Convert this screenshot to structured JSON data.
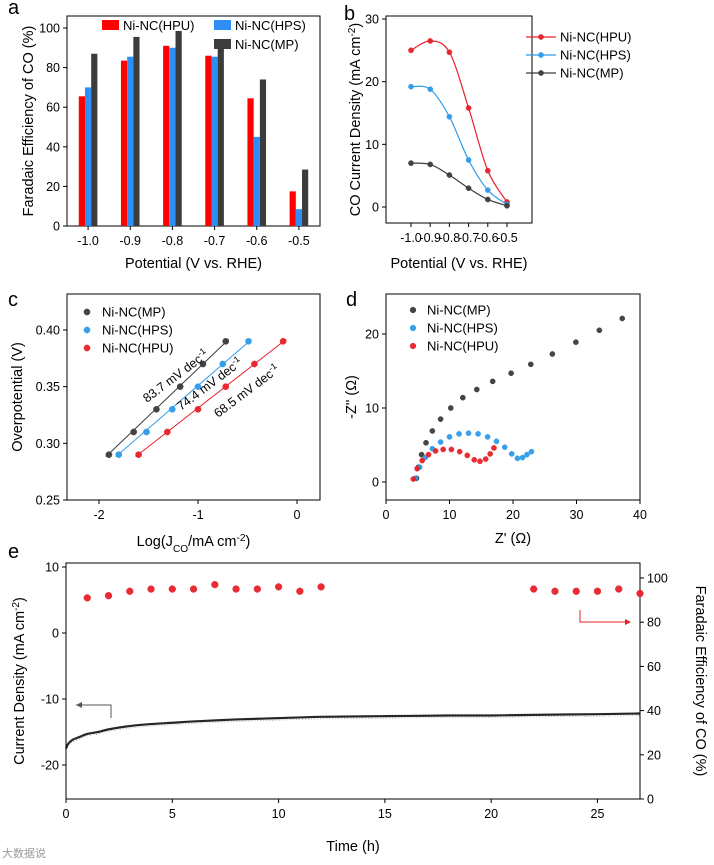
{
  "chart_data": [
    {
      "panel": "a",
      "type": "bar",
      "xlabel": "Potential (V vs. RHE)",
      "ylabel": "Faradaic Efficiency of CO (%)",
      "categories": [
        "-1.0",
        "-0.9",
        "-0.8",
        "-0.7",
        "-0.6",
        "-0.5"
      ],
      "ylim": [
        0,
        100
      ],
      "yticks": [
        "0",
        "20",
        "40",
        "60",
        "80",
        "100"
      ],
      "legend_position": "top",
      "series": [
        {
          "name": "Ni-NC(HPU)",
          "color": "#ff0000",
          "values": [
            65.5,
            83.5,
            91,
            86,
            64.5,
            17.5
          ]
        },
        {
          "name": "Ni-NC(HPS)",
          "color": "#2e8ef5",
          "values": [
            70,
            85.5,
            90,
            85.5,
            45,
            8.5
          ]
        },
        {
          "name": "Ni-NC(MP)",
          "color": "#3c3c3c",
          "values": [
            87,
            95.5,
            98.5,
            92.5,
            74,
            28.5
          ]
        }
      ]
    },
    {
      "panel": "b",
      "type": "line",
      "xlabel": "Potential (V vs. RHE)",
      "ylabel": "CO Current Density (mA cm⁻²)",
      "x": [
        -1.0,
        -0.9,
        -0.8,
        -0.7,
        -0.6,
        -0.5
      ],
      "xticks": [
        "-1.0",
        "-0.9",
        "-0.8",
        "-0.7",
        "-0.6",
        "-0.5"
      ],
      "xlim": [
        -1.05,
        -0.47
      ],
      "ylim": [
        -1.5,
        30
      ],
      "yticks": [
        "0",
        "10",
        "20",
        "30"
      ],
      "legend_position": "top-right",
      "series": [
        {
          "name": "Ni-NC(HPU)",
          "color": "#e8202a",
          "values": [
            25.0,
            26.5,
            24.7,
            15.8,
            5.8,
            0.8
          ]
        },
        {
          "name": "Ni-NC(HPS)",
          "color": "#2e9bea",
          "values": [
            19.2,
            18.8,
            14.4,
            7.5,
            2.7,
            0.4
          ]
        },
        {
          "name": "Ni-NC(MP)",
          "color": "#3c3c3c",
          "values": [
            7.0,
            6.8,
            5.1,
            3.0,
            1.2,
            0.2
          ]
        }
      ]
    },
    {
      "panel": "c",
      "type": "scatter",
      "xlabel": "Log(JCO/mA cm⁻²)",
      "ylabel": "Overpotential (V)",
      "xlim": [
        -2.3,
        0.3
      ],
      "ylim": [
        0.25,
        0.43
      ],
      "xticks": [
        "-2",
        "-1",
        "0"
      ],
      "yticks": [
        "0.25",
        "0.30",
        "0.35",
        "0.40"
      ],
      "legend_position": "top-left",
      "series": [
        {
          "name": "Ni-NC(MP)",
          "color": "#3c3c3c",
          "slope_label": "83.7 mV dec⁻¹",
          "x": [
            -1.9,
            -1.65,
            -1.42,
            -1.18,
            -0.95,
            -0.72
          ],
          "y": [
            0.29,
            0.31,
            0.33,
            0.35,
            0.37,
            0.39
          ]
        },
        {
          "name": "Ni-NC(HPS)",
          "color": "#2e9bea",
          "slope_label": "74.4 mV dec⁻¹",
          "x": [
            -1.8,
            -1.52,
            -1.26,
            -1.0,
            -0.75,
            -0.49
          ],
          "y": [
            0.29,
            0.31,
            0.33,
            0.35,
            0.37,
            0.39
          ]
        },
        {
          "name": "Ni-NC(HPU)",
          "color": "#e8202a",
          "slope_label": "68.5 mV dec⁻¹",
          "x": [
            -1.6,
            -1.31,
            -1.0,
            -0.72,
            -0.43,
            -0.14
          ],
          "y": [
            0.29,
            0.31,
            0.33,
            0.35,
            0.37,
            0.39
          ]
        }
      ]
    },
    {
      "panel": "d",
      "type": "scatter",
      "xlabel": "Z' (Ω)",
      "ylabel": "-Z'' (Ω)",
      "xlim": [
        0,
        40
      ],
      "ylim": [
        -1.5,
        25
      ],
      "xticks": [
        "0",
        "10",
        "20",
        "30",
        "40"
      ],
      "yticks": [
        "0",
        "10",
        "20"
      ],
      "legend_position": "top-left",
      "series": [
        {
          "name": "Ni-NC(MP)",
          "color": "#3c3c3c",
          "x": [
            4.8,
            5.1,
            5.6,
            6.3,
            7.3,
            8.6,
            10.2,
            12.1,
            14.3,
            16.8,
            19.7,
            22.8,
            26.2,
            29.9,
            33.6,
            37.2
          ],
          "y": [
            0.5,
            2.0,
            3.7,
            5.3,
            6.9,
            8.5,
            10.0,
            11.4,
            12.5,
            13.6,
            14.7,
            15.9,
            17.3,
            18.9,
            20.5,
            22.1
          ]
        },
        {
          "name": "Ni-NC(HPS)",
          "color": "#2e9bea",
          "x": [
            4.6,
            5.3,
            6.2,
            7.3,
            8.6,
            10.0,
            11.5,
            13.0,
            14.5,
            16.0,
            17.4,
            18.7,
            19.8,
            20.7,
            21.5,
            22.2,
            22.9
          ],
          "y": [
            0.5,
            2.0,
            3.3,
            4.5,
            5.4,
            6.1,
            6.5,
            6.6,
            6.5,
            6.1,
            5.5,
            4.7,
            3.8,
            3.2,
            3.3,
            3.7,
            4.1
          ]
        },
        {
          "name": "Ni-NC(HPU)",
          "color": "#e8202a",
          "x": [
            4.3,
            4.9,
            5.7,
            6.7,
            7.8,
            9.0,
            10.3,
            11.6,
            12.8,
            13.9,
            14.8,
            15.7,
            16.4,
            17.0
          ],
          "y": [
            0.4,
            1.8,
            2.9,
            3.7,
            4.2,
            4.4,
            4.4,
            4.1,
            3.6,
            3.0,
            2.8,
            3.1,
            3.8,
            4.6
          ]
        }
      ]
    },
    {
      "panel": "e",
      "type": "line",
      "xlabel": "Time (h)",
      "ylabel": "Current Density (mA cm⁻²)",
      "y2label": "Faradaic Efficiency of CO (%)",
      "xlim": [
        0,
        27
      ],
      "ylim": [
        -25,
        10
      ],
      "y2lim": [
        0,
        100
      ],
      "xticks": [
        "0",
        "5",
        "10",
        "15",
        "20",
        "25"
      ],
      "yticks": [
        "-20",
        "-10",
        "0",
        "10"
      ],
      "y2ticks": [
        "0",
        "20",
        "40",
        "60",
        "80",
        "100"
      ],
      "series": [
        {
          "name": "current density",
          "axis": "left",
          "color": "#000000",
          "x": [
            0,
            0.1,
            0.3,
            0.6,
            1.0,
            1.5,
            2.0,
            3.0,
            4.0,
            5.0,
            6.0,
            8.0,
            10.0,
            12.0,
            15.0,
            18.0,
            20.0,
            22.0,
            25.0,
            27.0
          ],
          "y": [
            -17.5,
            -16.8,
            -16.2,
            -15.8,
            -15.3,
            -15.0,
            -14.6,
            -14.1,
            -13.8,
            -13.6,
            -13.4,
            -13.1,
            -12.9,
            -12.7,
            -12.6,
            -12.5,
            -12.5,
            -12.4,
            -12.3,
            -12.2
          ]
        },
        {
          "name": "Faradaic efficiency",
          "axis": "right",
          "color": "#e8202a",
          "x": [
            1,
            2,
            3,
            4,
            5,
            6,
            7,
            8,
            9,
            10,
            11,
            12,
            22,
            23,
            24,
            25,
            26,
            27
          ],
          "y": [
            91,
            92,
            94,
            95,
            95,
            95,
            97,
            95,
            95,
            96,
            94,
            96,
            95,
            94,
            94,
            94,
            95,
            93
          ]
        }
      ]
    }
  ],
  "labels": {
    "a": "a",
    "b": "b",
    "c": "c",
    "d": "d",
    "e": "e",
    "xlabel_c": "Log(J",
    "xlabel_c_sub": "CO",
    "xlabel_c_tail": "/mA cm",
    "xlabel_c_sup": "-2",
    "xlabel_c_end": ")",
    "ylabel_b": "CO Current Density (mA cm",
    "ylabel_b_sup": "-2",
    "ylabel_b_end": ")",
    "ylabel_e": "Current Density (mA cm",
    "ylabel_e_sup": "-2",
    "ylabel_e_end": ")",
    "slope_mp": "83.7 mV dec",
    "slope_hps": "74.4 mV dec",
    "slope_hpu": "68.5 mV dec",
    "slope_sup": "-1",
    "z1": "Z' (",
    "z2": "-Z'' (",
    "ohm": "Ω",
    "paren": ")"
  },
  "watermark": "大数据说"
}
